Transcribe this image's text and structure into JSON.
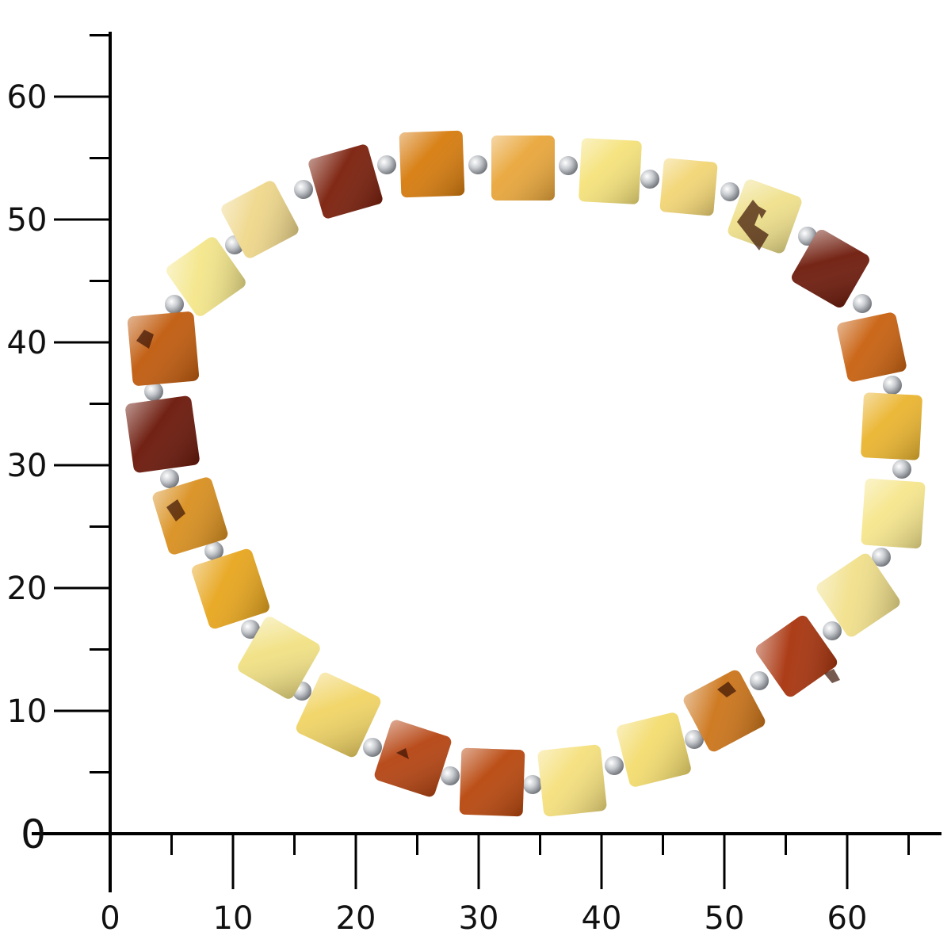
{
  "photo": {
    "subject": "amber-cube-bead-bracelet",
    "colors": {
      "background": "#ffffff",
      "axis": "#000000",
      "silver_bead": "#c9ccd0",
      "amber_cherry": "#7a1e0a",
      "amber_cognac": "#c8600e",
      "amber_honey": "#e8a21a",
      "amber_lemon": "#f3e06a",
      "amber_butterscotch": "#efd27e"
    }
  },
  "ruler": {
    "x_axis": {
      "range": [
        0,
        67
      ],
      "major_ticks": [
        0,
        10,
        20,
        30,
        40,
        50,
        60
      ],
      "minor_ticks": [
        5,
        15,
        25,
        35,
        45,
        55,
        65
      ],
      "labels": [
        "0",
        "10",
        "20",
        "30",
        "40",
        "50",
        "60"
      ]
    },
    "y_axis": {
      "range": [
        0,
        65
      ],
      "major_ticks": [
        0,
        10,
        20,
        30,
        40,
        50,
        60
      ],
      "minor_ticks": [
        5,
        15,
        25,
        35,
        45,
        55,
        65
      ],
      "labels": [
        "0",
        "10",
        "20",
        "30",
        "40",
        "50",
        "60"
      ]
    }
  }
}
